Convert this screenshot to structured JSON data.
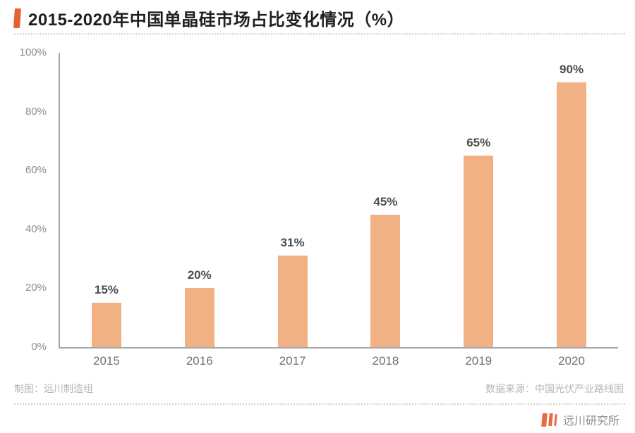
{
  "header": {
    "title": "2015-2020年中国单晶硅市场占比变化情况（%）"
  },
  "chart_data": {
    "type": "bar",
    "title": "2015-2020年中国单晶硅市场占比变化情况（%）",
    "categories": [
      "2015",
      "2016",
      "2017",
      "2018",
      "2019",
      "2020"
    ],
    "values": [
      15,
      20,
      31,
      45,
      65,
      90
    ],
    "value_labels": [
      "15%",
      "20%",
      "31%",
      "45%",
      "65%",
      "90%"
    ],
    "xlabel": "",
    "ylabel": "",
    "ylim": [
      0,
      100
    ],
    "yticks": [
      0,
      20,
      40,
      60,
      80,
      100
    ],
    "ytick_labels": [
      "0%",
      "20%",
      "40%",
      "60%",
      "80%",
      "100%"
    ],
    "grid": false,
    "legend_position": "none",
    "bar_color": "#F2B185"
  },
  "footer": {
    "credit_left": "制图：远川制造组",
    "source_right": "数据来源：中国光伏产业路线图",
    "brand": "远川研究所"
  },
  "colors": {
    "title_accent": "#E8602F",
    "bar_fill": "#F2B185",
    "axis_line": "#A6A6A6",
    "tick_label": "#8C8C8C",
    "value_label": "#4D4D4D",
    "footer_text": "#B5B5B5",
    "logo_orange": "#E86B42"
  }
}
